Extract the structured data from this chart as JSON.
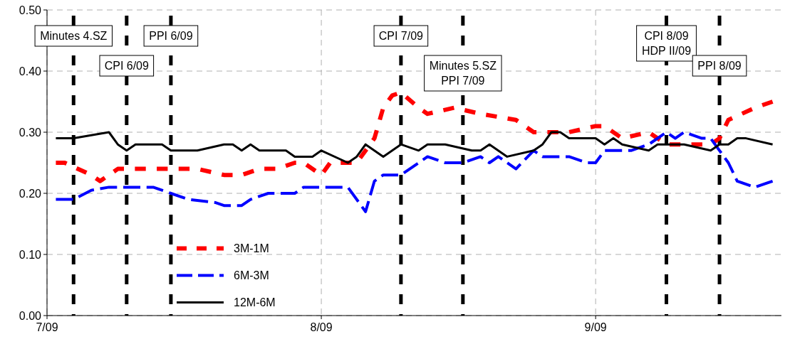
{
  "chart_data": {
    "type": "line",
    "xlim": [
      "2009-07-01",
      "2009-09-22"
    ],
    "xticks": [
      {
        "value": "2009-07-01",
        "label": "7/09"
      },
      {
        "value": "2009-08-01",
        "label": "8/09"
      },
      {
        "value": "2009-09-01",
        "label": "9/09"
      }
    ],
    "ylim": [
      0,
      0.5
    ],
    "yticks": [
      {
        "value": 0,
        "label": "0.00"
      },
      {
        "value": 0.1,
        "label": "0.10"
      },
      {
        "value": 0.2,
        "label": "0.20"
      },
      {
        "value": 0.3,
        "label": "0.30"
      },
      {
        "value": 0.4,
        "label": "0.40"
      },
      {
        "value": 0.5,
        "label": "0.50"
      }
    ],
    "grid": true,
    "legend": "bottom left",
    "series": [
      {
        "name": "3M-1M",
        "color": "#ff0000",
        "line_style": "dotted",
        "x": [
          "2009-07-02",
          "2009-07-03",
          "2009-07-06",
          "2009-07-07",
          "2009-07-09",
          "2009-07-10",
          "2009-07-12",
          "2009-07-15",
          "2009-07-18",
          "2009-07-21",
          "2009-07-23",
          "2009-07-25",
          "2009-07-27",
          "2009-07-29",
          "2009-07-30",
          "2009-08-01",
          "2009-08-02",
          "2009-08-05",
          "2009-08-07",
          "2009-08-08",
          "2009-08-09",
          "2009-08-10",
          "2009-08-12",
          "2009-08-13",
          "2009-08-16",
          "2009-08-19",
          "2009-08-23",
          "2009-08-25",
          "2009-08-29",
          "2009-09-01",
          "2009-09-02",
          "2009-09-04",
          "2009-09-07",
          "2009-09-09",
          "2009-09-10",
          "2009-09-14",
          "2009-09-15",
          "2009-09-16",
          "2009-09-19",
          "2009-09-21"
        ],
        "values": [
          0.25,
          0.25,
          0.23,
          0.22,
          0.24,
          0.24,
          0.24,
          0.24,
          0.24,
          0.23,
          0.23,
          0.24,
          0.24,
          0.25,
          0.25,
          0.23,
          0.25,
          0.25,
          0.29,
          0.34,
          0.36,
          0.365,
          0.34,
          0.33,
          0.34,
          0.33,
          0.32,
          0.3,
          0.3,
          0.31,
          0.31,
          0.29,
          0.3,
          0.28,
          0.28,
          0.28,
          0.29,
          0.32,
          0.34,
          0.35
        ]
      },
      {
        "name": "6M-3M",
        "color": "#0000ff",
        "line_style": "dashed",
        "x": [
          "2009-07-02",
          "2009-07-04",
          "2009-07-06",
          "2009-07-08",
          "2009-07-10",
          "2009-07-13",
          "2009-07-15",
          "2009-07-17",
          "2009-07-20",
          "2009-07-21",
          "2009-07-23",
          "2009-07-24",
          "2009-07-26",
          "2009-07-29",
          "2009-07-30",
          "2009-08-04",
          "2009-08-06",
          "2009-08-07",
          "2009-08-08",
          "2009-08-10",
          "2009-08-12",
          "2009-08-13",
          "2009-08-15",
          "2009-08-17",
          "2009-08-19",
          "2009-08-20",
          "2009-08-21",
          "2009-08-23",
          "2009-08-25",
          "2009-08-26",
          "2009-08-29",
          "2009-08-31",
          "2009-09-01",
          "2009-09-02",
          "2009-09-03",
          "2009-09-05",
          "2009-09-07",
          "2009-09-09",
          "2009-09-10",
          "2009-09-11",
          "2009-09-13",
          "2009-09-14",
          "2009-09-15",
          "2009-09-16",
          "2009-09-17",
          "2009-09-19",
          "2009-09-21"
        ],
        "values": [
          0.19,
          0.19,
          0.205,
          0.21,
          0.21,
          0.21,
          0.2,
          0.19,
          0.185,
          0.18,
          0.18,
          0.19,
          0.2,
          0.2,
          0.21,
          0.21,
          0.17,
          0.22,
          0.23,
          0.23,
          0.25,
          0.26,
          0.25,
          0.25,
          0.26,
          0.25,
          0.26,
          0.24,
          0.27,
          0.26,
          0.26,
          0.25,
          0.25,
          0.27,
          0.27,
          0.27,
          0.28,
          0.3,
          0.29,
          0.3,
          0.29,
          0.29,
          0.27,
          0.25,
          0.22,
          0.21,
          0.22
        ]
      },
      {
        "name": "12M-6M",
        "color": "#000000",
        "line_style": "solid",
        "x": [
          "2009-07-02",
          "2009-07-04",
          "2009-07-08",
          "2009-07-09",
          "2009-07-10",
          "2009-07-11",
          "2009-07-14",
          "2009-07-15",
          "2009-07-18",
          "2009-07-21",
          "2009-07-22",
          "2009-07-23",
          "2009-07-24",
          "2009-07-25",
          "2009-07-28",
          "2009-07-29",
          "2009-07-31",
          "2009-08-01",
          "2009-08-04",
          "2009-08-05",
          "2009-08-06",
          "2009-08-08",
          "2009-08-10",
          "2009-08-12",
          "2009-08-13",
          "2009-08-15",
          "2009-08-18",
          "2009-08-19",
          "2009-08-20",
          "2009-08-22",
          "2009-08-25",
          "2009-08-26",
          "2009-08-27",
          "2009-08-28",
          "2009-08-29",
          "2009-09-01",
          "2009-09-02",
          "2009-09-03",
          "2009-09-04",
          "2009-09-07",
          "2009-09-08",
          "2009-09-11",
          "2009-09-14",
          "2009-09-15",
          "2009-09-16",
          "2009-09-17",
          "2009-09-18",
          "2009-09-21"
        ],
        "values": [
          0.29,
          0.29,
          0.3,
          0.28,
          0.27,
          0.28,
          0.28,
          0.27,
          0.27,
          0.28,
          0.28,
          0.27,
          0.28,
          0.27,
          0.27,
          0.26,
          0.26,
          0.27,
          0.25,
          0.26,
          0.28,
          0.26,
          0.28,
          0.27,
          0.28,
          0.28,
          0.27,
          0.27,
          0.28,
          0.26,
          0.27,
          0.28,
          0.3,
          0.3,
          0.29,
          0.29,
          0.28,
          0.29,
          0.28,
          0.27,
          0.28,
          0.28,
          0.27,
          0.28,
          0.28,
          0.29,
          0.29,
          0.28
        ]
      }
    ],
    "ref_lines": [
      {
        "axis": "x",
        "value": "2009-07-04",
        "label": "Minutes 4.SZ",
        "color": "#000000",
        "line_style": "dashed"
      },
      {
        "axis": "x",
        "value": "2009-07-10",
        "label": "CPI 6/09",
        "color": "#000000",
        "line_style": "dashed"
      },
      {
        "axis": "x",
        "value": "2009-07-15",
        "label": "PPI 6/09",
        "color": "#000000",
        "line_style": "dashed"
      },
      {
        "axis": "x",
        "value": "2009-08-10",
        "label": "CPI 7/09",
        "color": "#000000",
        "line_style": "dashed"
      },
      {
        "axis": "x",
        "value": "2009-08-17",
        "label": "Minutes 5.SZ\nPPI 7/09",
        "color": "#000000",
        "line_style": "dashed"
      },
      {
        "axis": "x",
        "value": "2009-09-09",
        "label": "CPI 8/09\nHDP II/09",
        "color": "#000000",
        "line_style": "dashed"
      },
      {
        "axis": "x",
        "value": "2009-09-15",
        "label": "PPI 8/09",
        "color": "#000000",
        "line_style": "dashed"
      }
    ]
  }
}
